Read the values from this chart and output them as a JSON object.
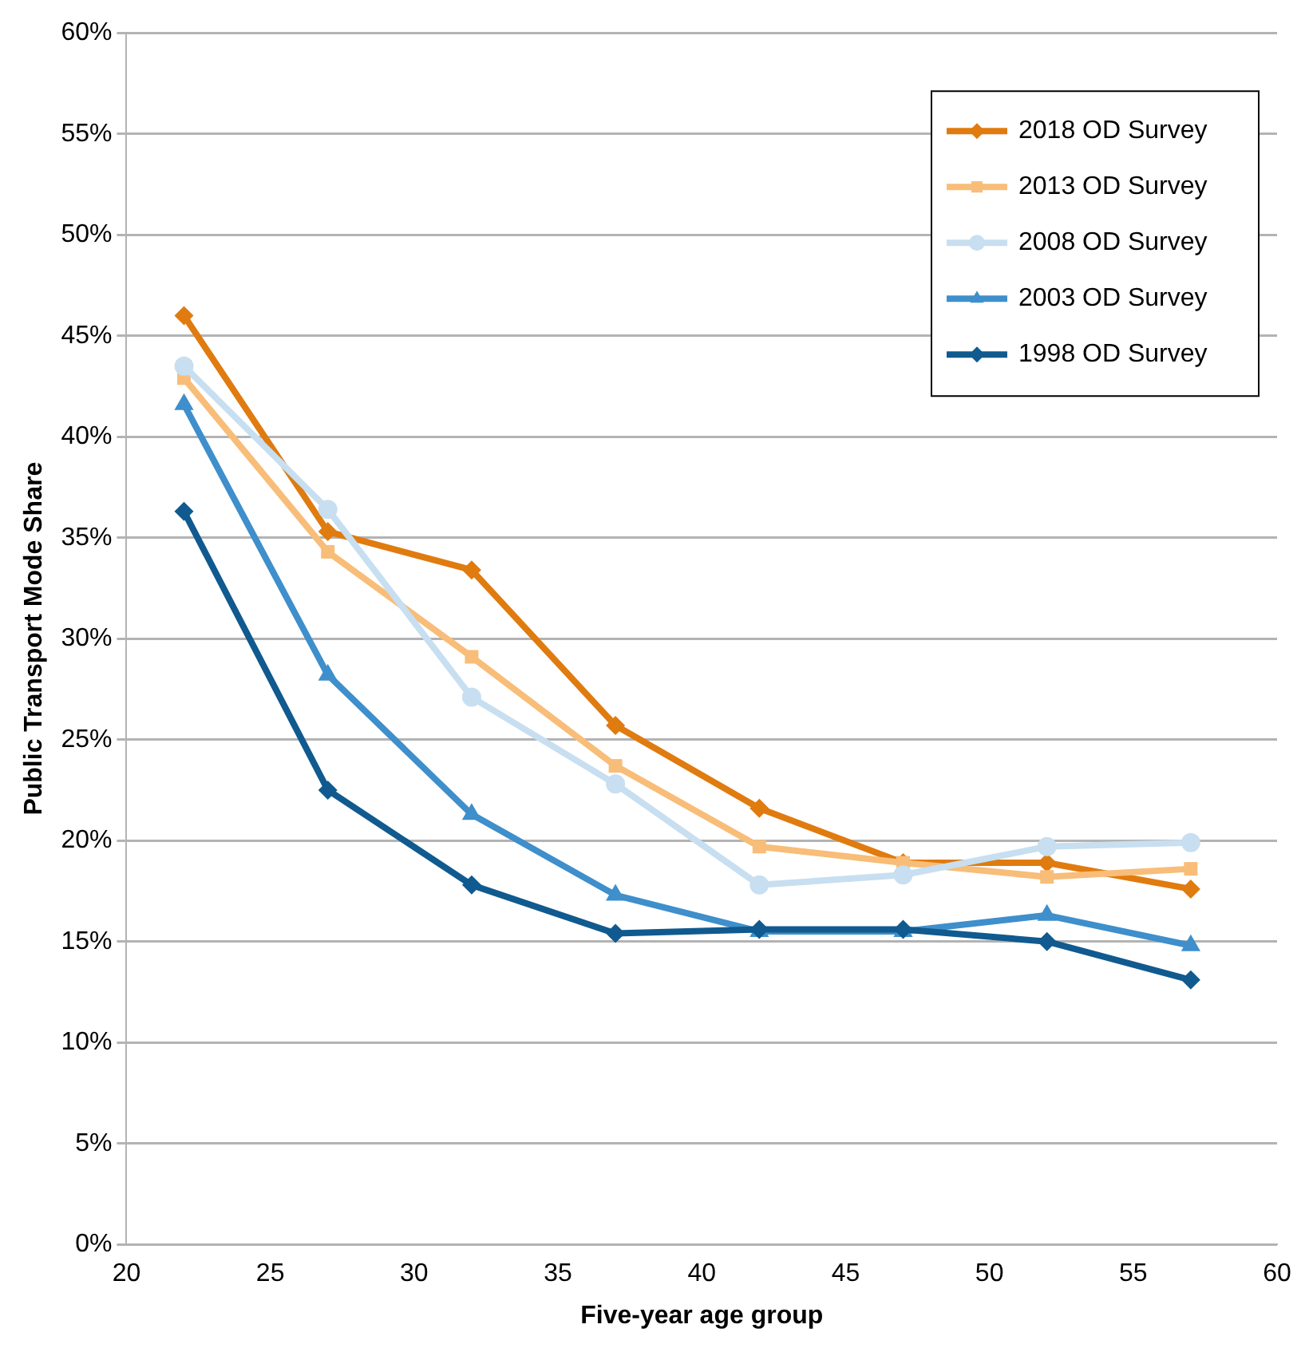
{
  "chart_data": {
    "type": "line",
    "xlabel": "Five-year age group",
    "ylabel": "Public Transport Mode Share",
    "x": [
      22,
      27,
      32,
      37,
      42,
      47,
      52,
      57
    ],
    "xlim": [
      20,
      60
    ],
    "xticks": [
      20,
      25,
      30,
      35,
      40,
      45,
      50,
      55,
      60
    ],
    "ylim": [
      0,
      60
    ],
    "yticks": [
      {
        "value": 0,
        "label": "0%"
      },
      {
        "value": 5,
        "label": "5%"
      },
      {
        "value": 10,
        "label": "10%"
      },
      {
        "value": 15,
        "label": "15%"
      },
      {
        "value": 20,
        "label": "20%"
      },
      {
        "value": 25,
        "label": "25%"
      },
      {
        "value": 30,
        "label": "30%"
      },
      {
        "value": 35,
        "label": "35%"
      },
      {
        "value": 40,
        "label": "40%"
      },
      {
        "value": 45,
        "label": "45%"
      },
      {
        "value": 50,
        "label": "50%"
      },
      {
        "value": 55,
        "label": "55%"
      },
      {
        "value": 60,
        "label": "60%"
      }
    ],
    "grid": "y",
    "legend": "top right",
    "line_style": "solid",
    "series": [
      {
        "name": "2018 OD Survey",
        "color": "#e07b0f",
        "marker": "diamond",
        "values": [
          46.0,
          35.3,
          33.4,
          25.7,
          21.6,
          18.9,
          18.9,
          17.6
        ]
      },
      {
        "name": "2013 OD Survey",
        "color": "#f8bd78",
        "marker": "square",
        "values": [
          42.9,
          34.3,
          29.1,
          23.7,
          19.7,
          18.9,
          18.2,
          18.6
        ]
      },
      {
        "name": "2008 OD Survey",
        "color": "#c7dff0",
        "marker": "circle",
        "values": [
          43.5,
          36.4,
          27.1,
          22.8,
          17.8,
          18.3,
          19.7,
          19.9
        ]
      },
      {
        "name": "2003 OD Survey",
        "color": "#3e8fcb",
        "marker": "triangle",
        "values": [
          41.6,
          28.2,
          21.3,
          17.3,
          15.5,
          15.5,
          16.3,
          14.8
        ]
      },
      {
        "name": "1998 OD Survey",
        "color": "#105a8f",
        "marker": "diamond",
        "values": [
          36.3,
          22.5,
          17.8,
          15.4,
          15.6,
          15.6,
          15.0,
          13.1
        ]
      }
    ]
  }
}
